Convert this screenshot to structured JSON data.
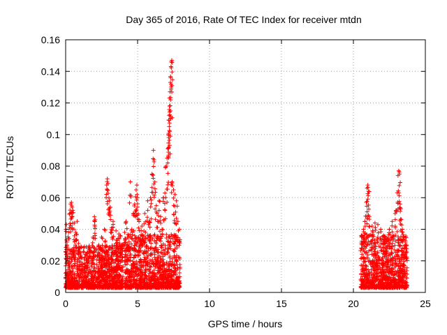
{
  "chart_data": {
    "type": "scatter",
    "title": "Day 365 of 2016, Rate Of TEC Index for receiver mtdn",
    "xlabel": "GPS time / hours",
    "ylabel": "ROTI / TECUs",
    "xlim": [
      0,
      25
    ],
    "ylim": [
      0,
      0.16
    ],
    "xticks": [
      "0",
      "5",
      "10",
      "15",
      "20",
      "25"
    ],
    "yticks": [
      "0",
      "0.02",
      "0.04",
      "0.06",
      "0.08",
      "0.1",
      "0.12",
      "0.14",
      "0.16"
    ],
    "grid": true,
    "marker": "+",
    "color": "#ff0000",
    "series": [
      {
        "name": "ROTI",
        "points": [
          [
            0.05,
            0.043
          ],
          [
            0.1,
            0.03
          ],
          [
            0.2,
            0.038
          ],
          [
            0.3,
            0.05
          ],
          [
            0.35,
            0.056
          ],
          [
            0.4,
            0.057
          ],
          [
            0.45,
            0.054
          ],
          [
            0.5,
            0.052
          ],
          [
            0.6,
            0.044
          ],
          [
            0.7,
            0.038
          ],
          [
            0.8,
            0.045
          ],
          [
            0.9,
            0.031
          ],
          [
            1.0,
            0.028
          ],
          [
            1.3,
            0.029
          ],
          [
            1.5,
            0.022
          ],
          [
            1.7,
            0.028
          ],
          [
            1.9,
            0.035
          ],
          [
            2.0,
            0.048
          ],
          [
            2.05,
            0.046
          ],
          [
            2.3,
            0.03
          ],
          [
            2.5,
            0.035
          ],
          [
            2.7,
            0.04
          ],
          [
            2.85,
            0.068
          ],
          [
            2.9,
            0.072
          ],
          [
            2.95,
            0.069
          ],
          [
            3.05,
            0.058
          ],
          [
            3.1,
            0.054
          ],
          [
            3.2,
            0.041
          ],
          [
            3.3,
            0.045
          ],
          [
            3.5,
            0.039
          ],
          [
            3.6,
            0.033
          ],
          [
            3.7,
            0.037
          ],
          [
            3.8,
            0.036
          ],
          [
            3.9,
            0.03
          ],
          [
            4.1,
            0.038
          ],
          [
            4.2,
            0.045
          ],
          [
            4.3,
            0.035
          ],
          [
            4.4,
            0.032
          ],
          [
            4.5,
            0.07
          ],
          [
            4.6,
            0.04
          ],
          [
            4.7,
            0.05
          ],
          [
            4.8,
            0.056
          ],
          [
            4.9,
            0.065
          ],
          [
            4.95,
            0.068
          ],
          [
            5.0,
            0.06
          ],
          [
            5.1,
            0.046
          ],
          [
            5.3,
            0.042
          ],
          [
            5.5,
            0.05
          ],
          [
            5.7,
            0.058
          ],
          [
            5.8,
            0.045
          ],
          [
            5.9,
            0.06
          ],
          [
            6.0,
            0.075
          ],
          [
            6.1,
            0.09
          ],
          [
            6.15,
            0.084
          ],
          [
            6.2,
            0.07
          ],
          [
            6.3,
            0.055
          ],
          [
            6.4,
            0.045
          ],
          [
            6.5,
            0.058
          ],
          [
            6.6,
            0.048
          ],
          [
            6.7,
            0.04
          ],
          [
            6.8,
            0.06
          ],
          [
            6.9,
            0.063
          ],
          [
            7.0,
            0.08
          ],
          [
            7.05,
            0.085
          ],
          [
            7.1,
            0.091
          ],
          [
            7.15,
            0.1
          ],
          [
            7.18,
            0.109
          ],
          [
            7.2,
            0.112
          ],
          [
            7.22,
            0.118
          ],
          [
            7.25,
            0.127
          ],
          [
            7.28,
            0.133
          ],
          [
            7.3,
            0.136
          ],
          [
            7.32,
            0.143
          ],
          [
            7.35,
            0.146
          ],
          [
            7.38,
            0.147
          ],
          [
            7.4,
            0.07
          ],
          [
            7.5,
            0.065
          ],
          [
            7.6,
            0.062
          ],
          [
            7.7,
            0.058
          ],
          [
            7.8,
            0.045
          ],
          [
            7.9,
            0.04
          ],
          [
            20.6,
            0.036
          ],
          [
            20.7,
            0.04
          ],
          [
            20.8,
            0.045
          ],
          [
            20.9,
            0.057
          ],
          [
            20.95,
            0.066
          ],
          [
            21.0,
            0.068
          ],
          [
            21.05,
            0.064
          ],
          [
            21.1,
            0.048
          ],
          [
            21.3,
            0.042
          ],
          [
            21.5,
            0.044
          ],
          [
            21.7,
            0.043
          ],
          [
            21.9,
            0.04
          ],
          [
            22.1,
            0.036
          ],
          [
            22.3,
            0.032
          ],
          [
            22.5,
            0.04
          ],
          [
            22.7,
            0.045
          ],
          [
            22.9,
            0.05
          ],
          [
            23.0,
            0.052
          ],
          [
            23.1,
            0.074
          ],
          [
            23.15,
            0.077
          ],
          [
            23.2,
            0.075
          ],
          [
            23.25,
            0.056
          ],
          [
            23.3,
            0.053
          ],
          [
            23.4,
            0.04
          ],
          [
            23.5,
            0.035
          ],
          [
            23.6,
            0.033
          ],
          [
            23.7,
            0.03
          ]
        ],
        "dense_bands": [
          {
            "x_range": [
              0.0,
              4.0
            ],
            "y_min": 0.003,
            "y_typical_max": 0.025
          },
          {
            "x_range": [
              4.1,
              7.95
            ],
            "y_min": 0.003,
            "y_typical_max": 0.03
          },
          {
            "x_range": [
              20.5,
              23.75
            ],
            "y_min": 0.003,
            "y_typical_max": 0.03
          }
        ]
      }
    ]
  }
}
